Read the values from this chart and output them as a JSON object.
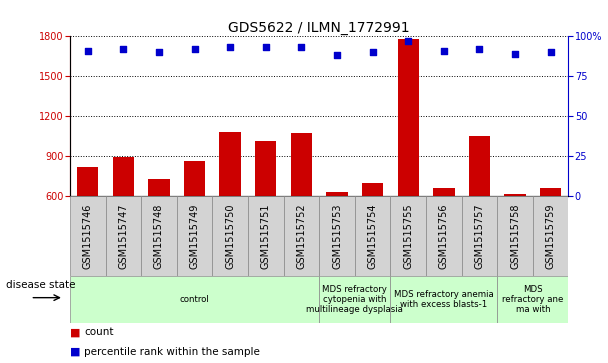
{
  "title": "GDS5622 / ILMN_1772991",
  "samples": [
    "GSM1515746",
    "GSM1515747",
    "GSM1515748",
    "GSM1515749",
    "GSM1515750",
    "GSM1515751",
    "GSM1515752",
    "GSM1515753",
    "GSM1515754",
    "GSM1515755",
    "GSM1515756",
    "GSM1515757",
    "GSM1515758",
    "GSM1515759"
  ],
  "counts": [
    820,
    890,
    730,
    860,
    1080,
    1010,
    1075,
    630,
    700,
    1780,
    660,
    1050,
    615,
    660
  ],
  "percentile_ranks": [
    91,
    92,
    90,
    92,
    93,
    93,
    93,
    88,
    90,
    97,
    91,
    92,
    89,
    90
  ],
  "ylim_left": [
    600,
    1800
  ],
  "ylim_right": [
    0,
    100
  ],
  "yticks_left": [
    600,
    900,
    1200,
    1500,
    1800
  ],
  "yticks_right": [
    0,
    25,
    50,
    75,
    100
  ],
  "bar_color": "#cc0000",
  "dot_color": "#0000cc",
  "disease_groups": [
    {
      "label": "control",
      "start": 0,
      "end": 7
    },
    {
      "label": "MDS refractory\ncytopenia with\nmultilineage dysplasia",
      "start": 7,
      "end": 9
    },
    {
      "label": "MDS refractory anemia\nwith excess blasts-1",
      "start": 9,
      "end": 12
    },
    {
      "label": "MDS\nrefractory ane\nma with",
      "start": 12,
      "end": 14
    }
  ],
  "xlabel_disease": "disease state",
  "legend_count": "count",
  "legend_percentile": "percentile rank within the sample",
  "title_fontsize": 10,
  "tick_fontsize": 7,
  "label_fontsize": 7.5,
  "cell_color": "#d3d3d3",
  "disease_color": "#ccffcc"
}
